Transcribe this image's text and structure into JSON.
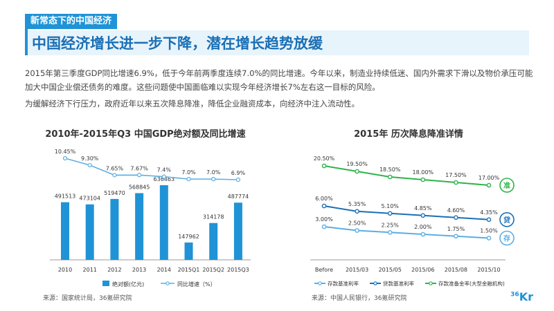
{
  "header": {
    "section_tag": "新常态下的中国经济",
    "headline": "中国经济增长进一步下降，潜在增长趋势放缓"
  },
  "body": {
    "paragraph1": "2015年第三季度GDP同比增速6.9%，低于今年前两季度连续7.0%的同比增速。今年以来，制造业持续低迷、国内外需求下滑以及物价承压可能加大中国企业偿还债务的难度。这些问题使中国面临难以实现今年经济增长7%左右这一目标的风险。",
    "paragraph2": "为缓解经济下行压力，政府近年以来五次降息降准，降低企业融资成本，向经济中注入流动性。"
  },
  "sources": {
    "left": "来源：国家统计局，36氪研究院",
    "right": "来源：中国人民银行，36氪研究院"
  },
  "logo": {
    "main": "Kr",
    "sup": "36"
  },
  "colors": {
    "accent": "#1f93d6",
    "bar": "#1f93d6",
    "line_light": "#5aaee3",
    "line_dark": "#1a6fb5",
    "line_green": "#2db34a"
  },
  "chart_data": [
    {
      "type": "bar",
      "title": "2010年-2015年Q3 中国GDP绝对额及同比增速",
      "categories": [
        "2010",
        "2011",
        "2012",
        "2013",
        "2014",
        "2015Q1",
        "2015Q2",
        "2015Q3"
      ],
      "series": [
        {
          "name": "绝对额(亿元)",
          "type": "bar",
          "values": [
            491513,
            473104,
            519470,
            568845,
            636463,
            147962,
            314178,
            487774
          ],
          "labels": [
            "491513",
            "473104",
            "519470",
            "568845",
            "636463",
            "147962",
            "314178",
            "487774"
          ]
        },
        {
          "name": "同比增速（%）",
          "type": "line",
          "values": [
            10.45,
            9.3,
            7.65,
            7.67,
            7.4,
            7.0,
            7.0,
            6.9
          ],
          "labels": [
            "10.45%",
            "9.30%",
            "7.65%",
            "7.67%",
            "7.4%",
            "7.0%",
            "7.0%",
            "6.9%"
          ]
        }
      ],
      "legend_position": "bottom",
      "grid": false
    },
    {
      "type": "line",
      "title": "2015年 历次降息降准详情",
      "categories": [
        "Before",
        "2015/03",
        "2015/05",
        "2015/06",
        "2015/08",
        "2015/10"
      ],
      "series": [
        {
          "name": "存款基准利率",
          "values": [
            3.0,
            2.5,
            2.25,
            2.0,
            1.75,
            1.5
          ],
          "labels": [
            "3.00%",
            "2.50%",
            "2.25%",
            "2.00%",
            "1.75%",
            "1.50%"
          ],
          "badge": "存"
        },
        {
          "name": "贷款基准利率",
          "values": [
            6.0,
            5.35,
            5.1,
            4.85,
            4.6,
            4.35
          ],
          "labels": [
            "6.00%",
            "5.35%",
            "5.10%",
            "4.85%",
            "4.60%",
            "4.35%"
          ],
          "badge": "贷"
        },
        {
          "name": "存款准备金率(大型金融机构)",
          "values": [
            20.5,
            19.5,
            18.5,
            18.0,
            17.5,
            17.0
          ],
          "labels": [
            "20.50%",
            "19.50%",
            "18.50%",
            "18.00%",
            "17.50%",
            "17.00%"
          ],
          "badge": "准"
        }
      ],
      "legend_position": "bottom",
      "grid": false
    }
  ]
}
